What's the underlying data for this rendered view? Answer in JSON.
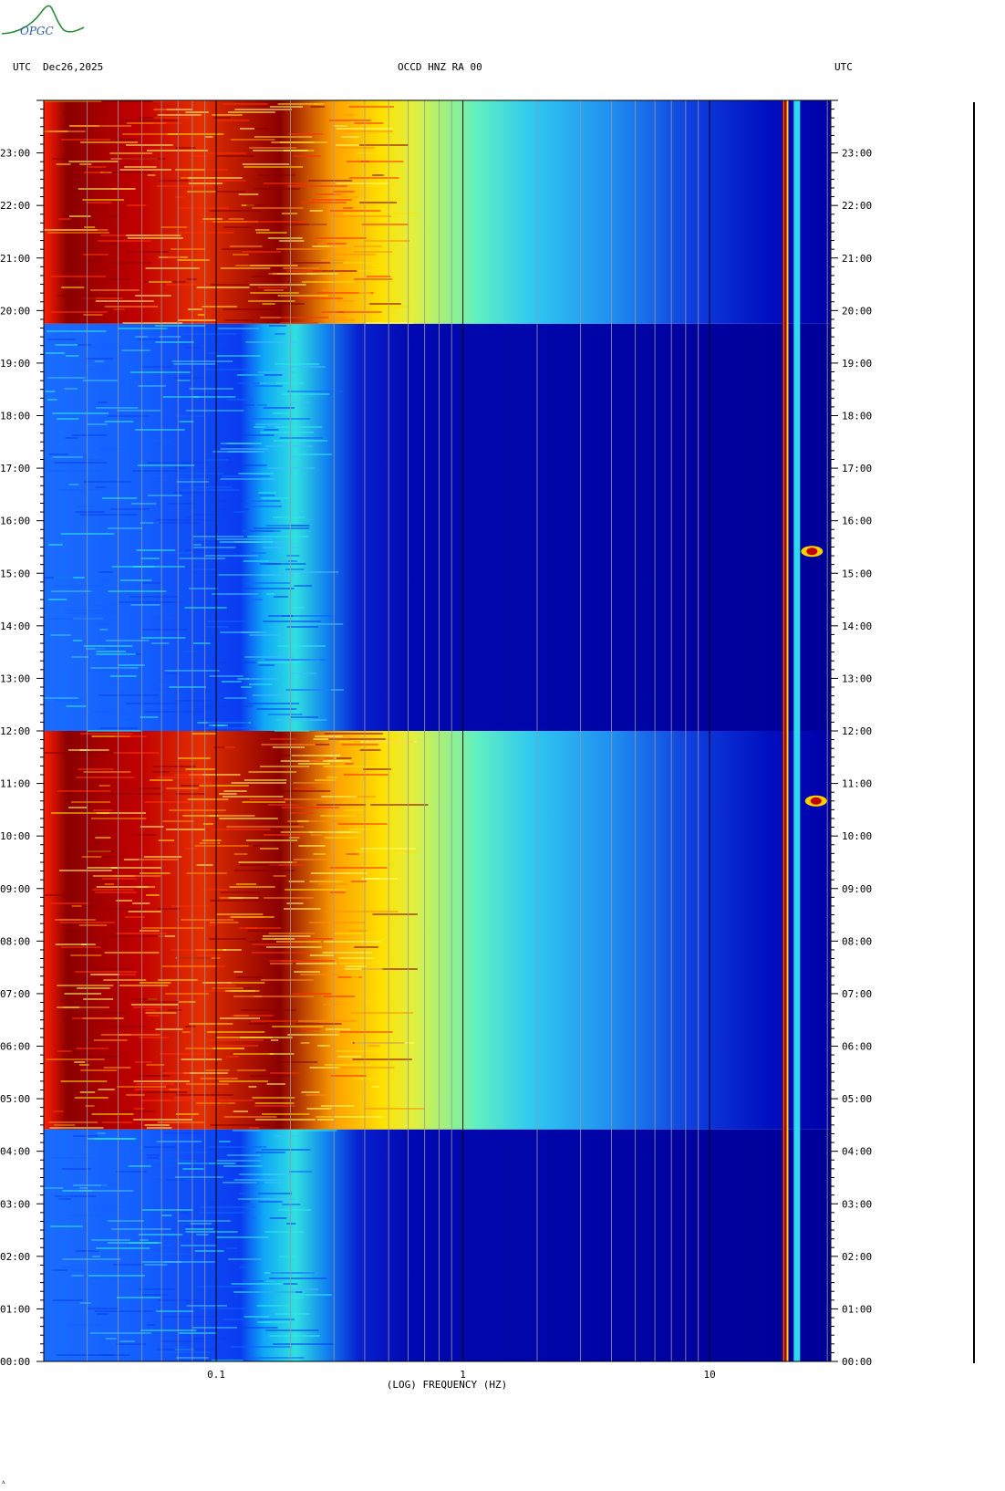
{
  "header": {
    "left_tz": "UTC",
    "date": "Dec26,2025",
    "station": "OCCD HNZ RA 00",
    "right_tz": "UTC"
  },
  "logo_text": "OPGC",
  "footer_mark": "ᴧ",
  "chart_data": {
    "type": "heatmap",
    "subtype": "spectrogram",
    "xlabel": "(LOG) FREQUENCY (HZ)",
    "x_scale": "log",
    "xlim": [
      0.02,
      31
    ],
    "x_ticks": [
      {
        "value": 0.1,
        "label": "0.1"
      },
      {
        "value": 1,
        "label": "1"
      },
      {
        "value": 10,
        "label": "10"
      }
    ],
    "ylim": [
      "00:00",
      "24:00"
    ],
    "y_ticks": [
      "00:00",
      "01:00",
      "02:00",
      "03:00",
      "04:00",
      "05:00",
      "06:00",
      "07:00",
      "08:00",
      "09:00",
      "10:00",
      "11:00",
      "12:00",
      "13:00",
      "14:00",
      "15:00",
      "16:00",
      "17:00",
      "18:00",
      "19:00",
      "20:00",
      "21:00",
      "22:00",
      "23:00"
    ],
    "colormap": [
      "#00008c",
      "#0000ff",
      "#00ffff",
      "#ffff00",
      "#ff0000",
      "#8b0000"
    ],
    "high_energy_periods_utc": [
      {
        "start": "04:25",
        "end": "12:00"
      },
      {
        "start": "19:45",
        "end": "24:00"
      }
    ],
    "quiet_periods_utc": [
      {
        "start": "00:00",
        "end": "04:25"
      },
      {
        "start": "12:00",
        "end": "19:45"
      }
    ],
    "persistent_lines_hz": [
      20,
      22.5
    ],
    "notable_events": [
      {
        "time": "15:25",
        "freq_hz": 26
      },
      {
        "time": "10:40",
        "freq_hz": 27
      }
    ]
  }
}
